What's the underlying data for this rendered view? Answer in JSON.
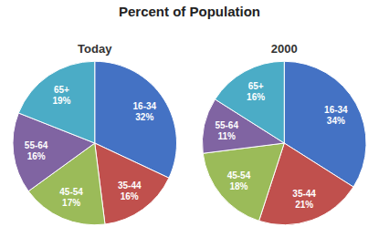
{
  "title": "Percent of Population",
  "chart_data": [
    {
      "type": "pie",
      "title": "Today",
      "categories": [
        "16-34",
        "35-44",
        "45-54",
        "55-64",
        "65+"
      ],
      "values": [
        32,
        16,
        17,
        16,
        19
      ],
      "value_labels": [
        "32%",
        "16%",
        "17%",
        "16%",
        "19%"
      ],
      "colors": [
        "#4472C4",
        "#C0504D",
        "#9BBB59",
        "#8064A2",
        "#4BACC6"
      ],
      "data_labels": true
    },
    {
      "type": "pie",
      "title": "2000",
      "categories": [
        "16-34",
        "35-44",
        "45-54",
        "55-64",
        "65+"
      ],
      "values": [
        34,
        21,
        18,
        11,
        16
      ],
      "value_labels": [
        "34%",
        "21%",
        "18%",
        "11%",
        "16%"
      ],
      "colors": [
        "#4472C4",
        "#C0504D",
        "#9BBB59",
        "#8064A2",
        "#4BACC6"
      ],
      "data_labels": true
    }
  ]
}
